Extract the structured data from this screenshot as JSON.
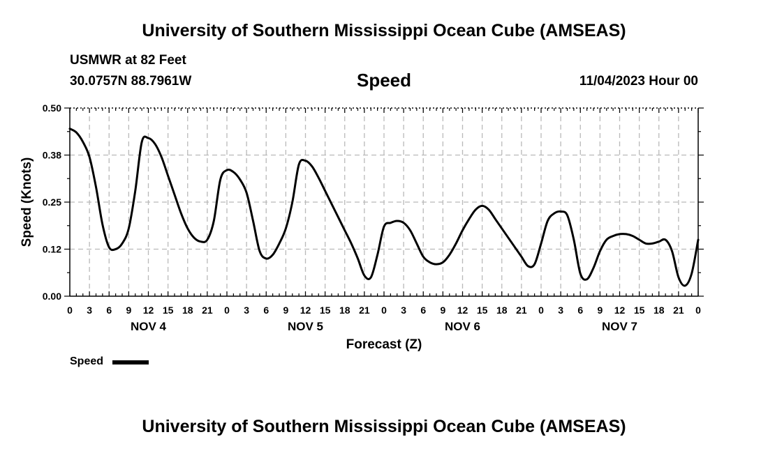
{
  "header": {
    "title": "University of Southern Mississippi Ocean Cube (AMSEAS)",
    "station": "USMWR at 82 Feet",
    "coordinates": "30.0757N  88.7961W",
    "plot_name": "Speed",
    "datetime": "11/04/2023 Hour 00"
  },
  "footer": {
    "title": "University of Southern Mississippi Ocean Cube (AMSEAS)"
  },
  "legend": {
    "label": "Speed",
    "color": "#000000"
  },
  "chart_data": {
    "type": "line",
    "title": "Speed",
    "xlabel": "Forecast (Z)",
    "ylabel": "Speed (Knots)",
    "xlim": [
      0,
      96
    ],
    "ylim": [
      0,
      0.5
    ],
    "y_ticks": [
      0.0,
      0.125,
      0.25,
      0.375,
      0.5
    ],
    "y_tick_labels": [
      "0.00",
      "0.12",
      "0.25",
      "0.38",
      "0.50"
    ],
    "x_tick_step_hours": 3,
    "x_tick_labels": [
      "0",
      "3",
      "6",
      "9",
      "12",
      "15",
      "18",
      "21",
      "0",
      "3",
      "6",
      "9",
      "12",
      "15",
      "18",
      "21",
      "0",
      "3",
      "6",
      "9",
      "12",
      "15",
      "18",
      "21",
      "0",
      "3",
      "6",
      "9",
      "12",
      "15",
      "18",
      "21",
      "0"
    ],
    "day_labels": [
      {
        "label": "NOV 4",
        "hour": 12
      },
      {
        "label": "NOV 5",
        "hour": 36
      },
      {
        "label": "NOV 6",
        "hour": 60
      },
      {
        "label": "NOV 7",
        "hour": 84
      }
    ],
    "grid": true,
    "series": [
      {
        "name": "Speed",
        "color": "#000000",
        "x": [
          0,
          1,
          2,
          3,
          4,
          5,
          6,
          7,
          8,
          9,
          10,
          11,
          12,
          13,
          14,
          15,
          16,
          17,
          18,
          19,
          20,
          21,
          22,
          23,
          24,
          25,
          26,
          27,
          28,
          29,
          30,
          31,
          32,
          33,
          34,
          35,
          36,
          37,
          38,
          39,
          40,
          41,
          42,
          43,
          44,
          45,
          46,
          47,
          48,
          49,
          50,
          51,
          52,
          53,
          54,
          55,
          56,
          57,
          58,
          59,
          60,
          61,
          62,
          63,
          64,
          65,
          66,
          67,
          68,
          69,
          70,
          71,
          72,
          73,
          74,
          75,
          76,
          77,
          78,
          79,
          80,
          81,
          82,
          83,
          84,
          85,
          86,
          87,
          88,
          89,
          90,
          91,
          92,
          93,
          94,
          95,
          96
        ],
        "values": [
          0.445,
          0.435,
          0.41,
          0.37,
          0.29,
          0.19,
          0.13,
          0.125,
          0.14,
          0.18,
          0.28,
          0.41,
          0.42,
          0.405,
          0.37,
          0.32,
          0.27,
          0.22,
          0.18,
          0.155,
          0.145,
          0.15,
          0.2,
          0.31,
          0.335,
          0.33,
          0.31,
          0.275,
          0.2,
          0.12,
          0.1,
          0.11,
          0.14,
          0.18,
          0.25,
          0.35,
          0.36,
          0.345,
          0.315,
          0.28,
          0.245,
          0.21,
          0.175,
          0.14,
          0.1,
          0.055,
          0.05,
          0.11,
          0.185,
          0.195,
          0.2,
          0.195,
          0.175,
          0.14,
          0.105,
          0.09,
          0.085,
          0.09,
          0.11,
          0.14,
          0.175,
          0.205,
          0.23,
          0.24,
          0.23,
          0.205,
          0.18,
          0.155,
          0.13,
          0.105,
          0.08,
          0.085,
          0.14,
          0.2,
          0.22,
          0.225,
          0.215,
          0.15,
          0.06,
          0.045,
          0.075,
          0.12,
          0.15,
          0.16,
          0.165,
          0.165,
          0.16,
          0.15,
          0.14,
          0.14,
          0.145,
          0.15,
          0.12,
          0.05,
          0.028,
          0.06,
          0.15
        ]
      }
    ]
  }
}
